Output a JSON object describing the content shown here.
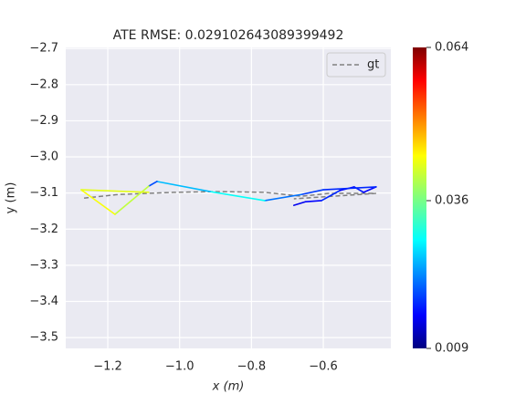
{
  "chart_data": {
    "type": "trajectory",
    "title": "ATE RMSE: 0.029102643089399492",
    "x_label": "x (m)",
    "y_label": "y (m)",
    "xlim": [
      -1.317,
      -0.412
    ],
    "xticks": [
      {
        "value": -1.2,
        "label": "−1.2"
      },
      {
        "value": -1.0,
        "label": "−1.0"
      },
      {
        "value": -0.8,
        "label": "−0.8"
      },
      {
        "value": -0.6,
        "label": "−0.6"
      }
    ],
    "ylim": [
      -3.53,
      -2.697
    ],
    "yticks": [
      {
        "value": -2.7,
        "label": "−2.7"
      },
      {
        "value": -2.8,
        "label": "−2.8"
      },
      {
        "value": -2.9,
        "label": "−2.9"
      },
      {
        "value": -3.0,
        "label": "−3.0"
      },
      {
        "value": -3.1,
        "label": "−3.1"
      },
      {
        "value": -3.2,
        "label": "−3.2"
      },
      {
        "value": -3.3,
        "label": "−3.3"
      },
      {
        "value": -3.4,
        "label": "−3.4"
      },
      {
        "value": -3.5,
        "label": "−3.5"
      }
    ],
    "grid": true,
    "legend": "upper right",
    "reference": {
      "name": "gt",
      "color": "#808080",
      "x": [
        -1.266,
        -1.17,
        -1.017,
        -0.89,
        -0.763,
        -0.661,
        -0.585,
        -0.453,
        -0.682
      ],
      "y": [
        -3.114,
        -3.104,
        -3.098,
        -3.096,
        -3.098,
        -3.109,
        -3.101,
        -3.101,
        -3.116
      ]
    },
    "estimate": {
      "colormap": "jet",
      "x": [
        -0.682,
        -0.649,
        -0.605,
        -0.554,
        -0.514,
        -0.488,
        -0.453,
        -0.6,
        -0.661,
        -0.763,
        -0.915,
        -1.063,
        -1.086,
        -1.18,
        -1.274,
        -1.086
      ],
      "y": [
        -3.134,
        -3.124,
        -3.121,
        -3.093,
        -3.083,
        -3.098,
        -3.083,
        -3.091,
        -3.104,
        -3.121,
        -3.096,
        -3.068,
        -3.081,
        -3.159,
        -3.091,
        -3.098
      ],
      "error": [
        0.015,
        0.016,
        0.018,
        0.016,
        0.017,
        0.016,
        0.018,
        0.019,
        0.022,
        0.03,
        0.026,
        0.02,
        0.04,
        0.043,
        0.042,
        0.031
      ]
    },
    "clim": [
      0.009,
      0.064
    ],
    "cticks": [
      0.009,
      0.036,
      0.064
    ]
  }
}
